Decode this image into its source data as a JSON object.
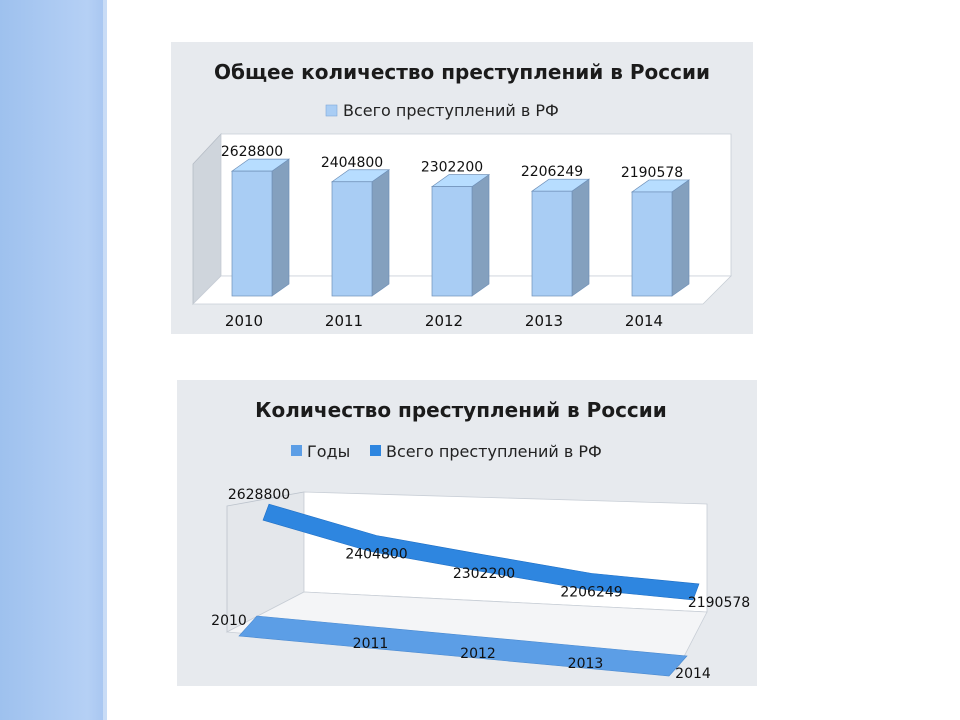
{
  "chart_data": [
    {
      "type": "bar",
      "title": "Общее количество преступлений в России",
      "categories": [
        "2010",
        "2011",
        "2012",
        "2013",
        "2014"
      ],
      "series": [
        {
          "name": "Всего преступлений в РФ",
          "values": [
            2628800,
            2404800,
            2302200,
            2206249,
            2190578
          ],
          "color": "#a9cdf4"
        }
      ],
      "legend": "top",
      "grid": false,
      "three_d": true
    },
    {
      "type": "line",
      "title": "Количество преступлений в России",
      "categories": [
        "2010",
        "2011",
        "2012",
        "2013",
        "2014"
      ],
      "series": [
        {
          "name": "Годы",
          "values": [
            2010,
            2011,
            2012,
            2013,
            2014
          ],
          "color": "#5c9ee6"
        },
        {
          "name": "Всего преступлений в РФ",
          "values": [
            2628800,
            2404800,
            2302200,
            2206249,
            2190578
          ],
          "color": "#2e86e0"
        }
      ],
      "legend": "top",
      "grid": false,
      "three_d": true
    }
  ]
}
